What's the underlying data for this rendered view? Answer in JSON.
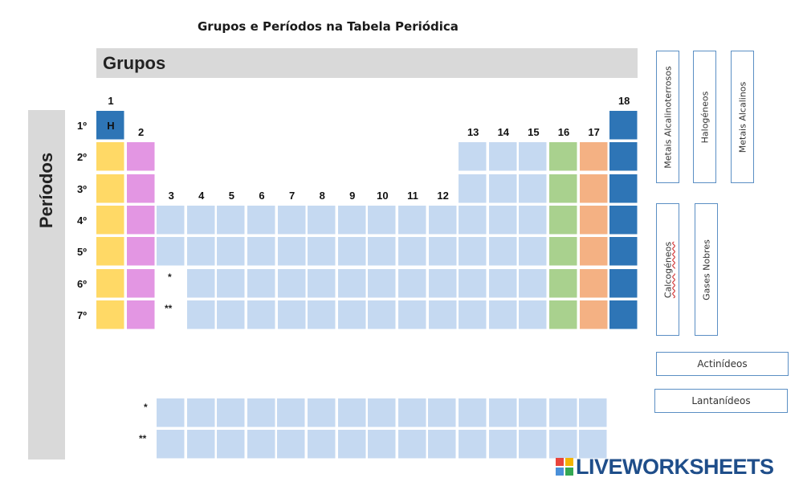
{
  "title": "Grupos e Períodos na Tabela Periódica",
  "groups_header": "Grupos",
  "periods_header": "Períodos",
  "group_labels": [
    "1",
    "2",
    "3",
    "4",
    "5",
    "6",
    "7",
    "8",
    "9",
    "10",
    "11",
    "12",
    "13",
    "14",
    "15",
    "16",
    "17",
    "18"
  ],
  "period_labels": [
    "1º",
    "2º",
    "3º",
    "4º",
    "5º",
    "6º",
    "7º"
  ],
  "hydrogen_symbol": "H",
  "lanthanide_marker": "*",
  "actinide_marker": "**",
  "answer_boxes": {
    "alkaline_earth": "Metais Alcalinoterrosos",
    "halogens": "Halogéneos",
    "alkali": "Metais Alcalinos",
    "chalcogens": "Calcogéneos",
    "noble_gases": "Gases Nobres",
    "actinides": "Actinídeos",
    "lanthanides": "Lantanídeos"
  },
  "watermark": "LIVEWORKSHEETS",
  "colors": {
    "alkali": "#ffd966",
    "alkaline_earth": "#e396e3",
    "transition": "#c5d9f1",
    "chalcogens": "#a9d18e",
    "halogens": "#f4b183",
    "noble_gases": "#2e75b6",
    "hydrogen": "#2e75b6",
    "header_gray": "#d9d9d9"
  }
}
